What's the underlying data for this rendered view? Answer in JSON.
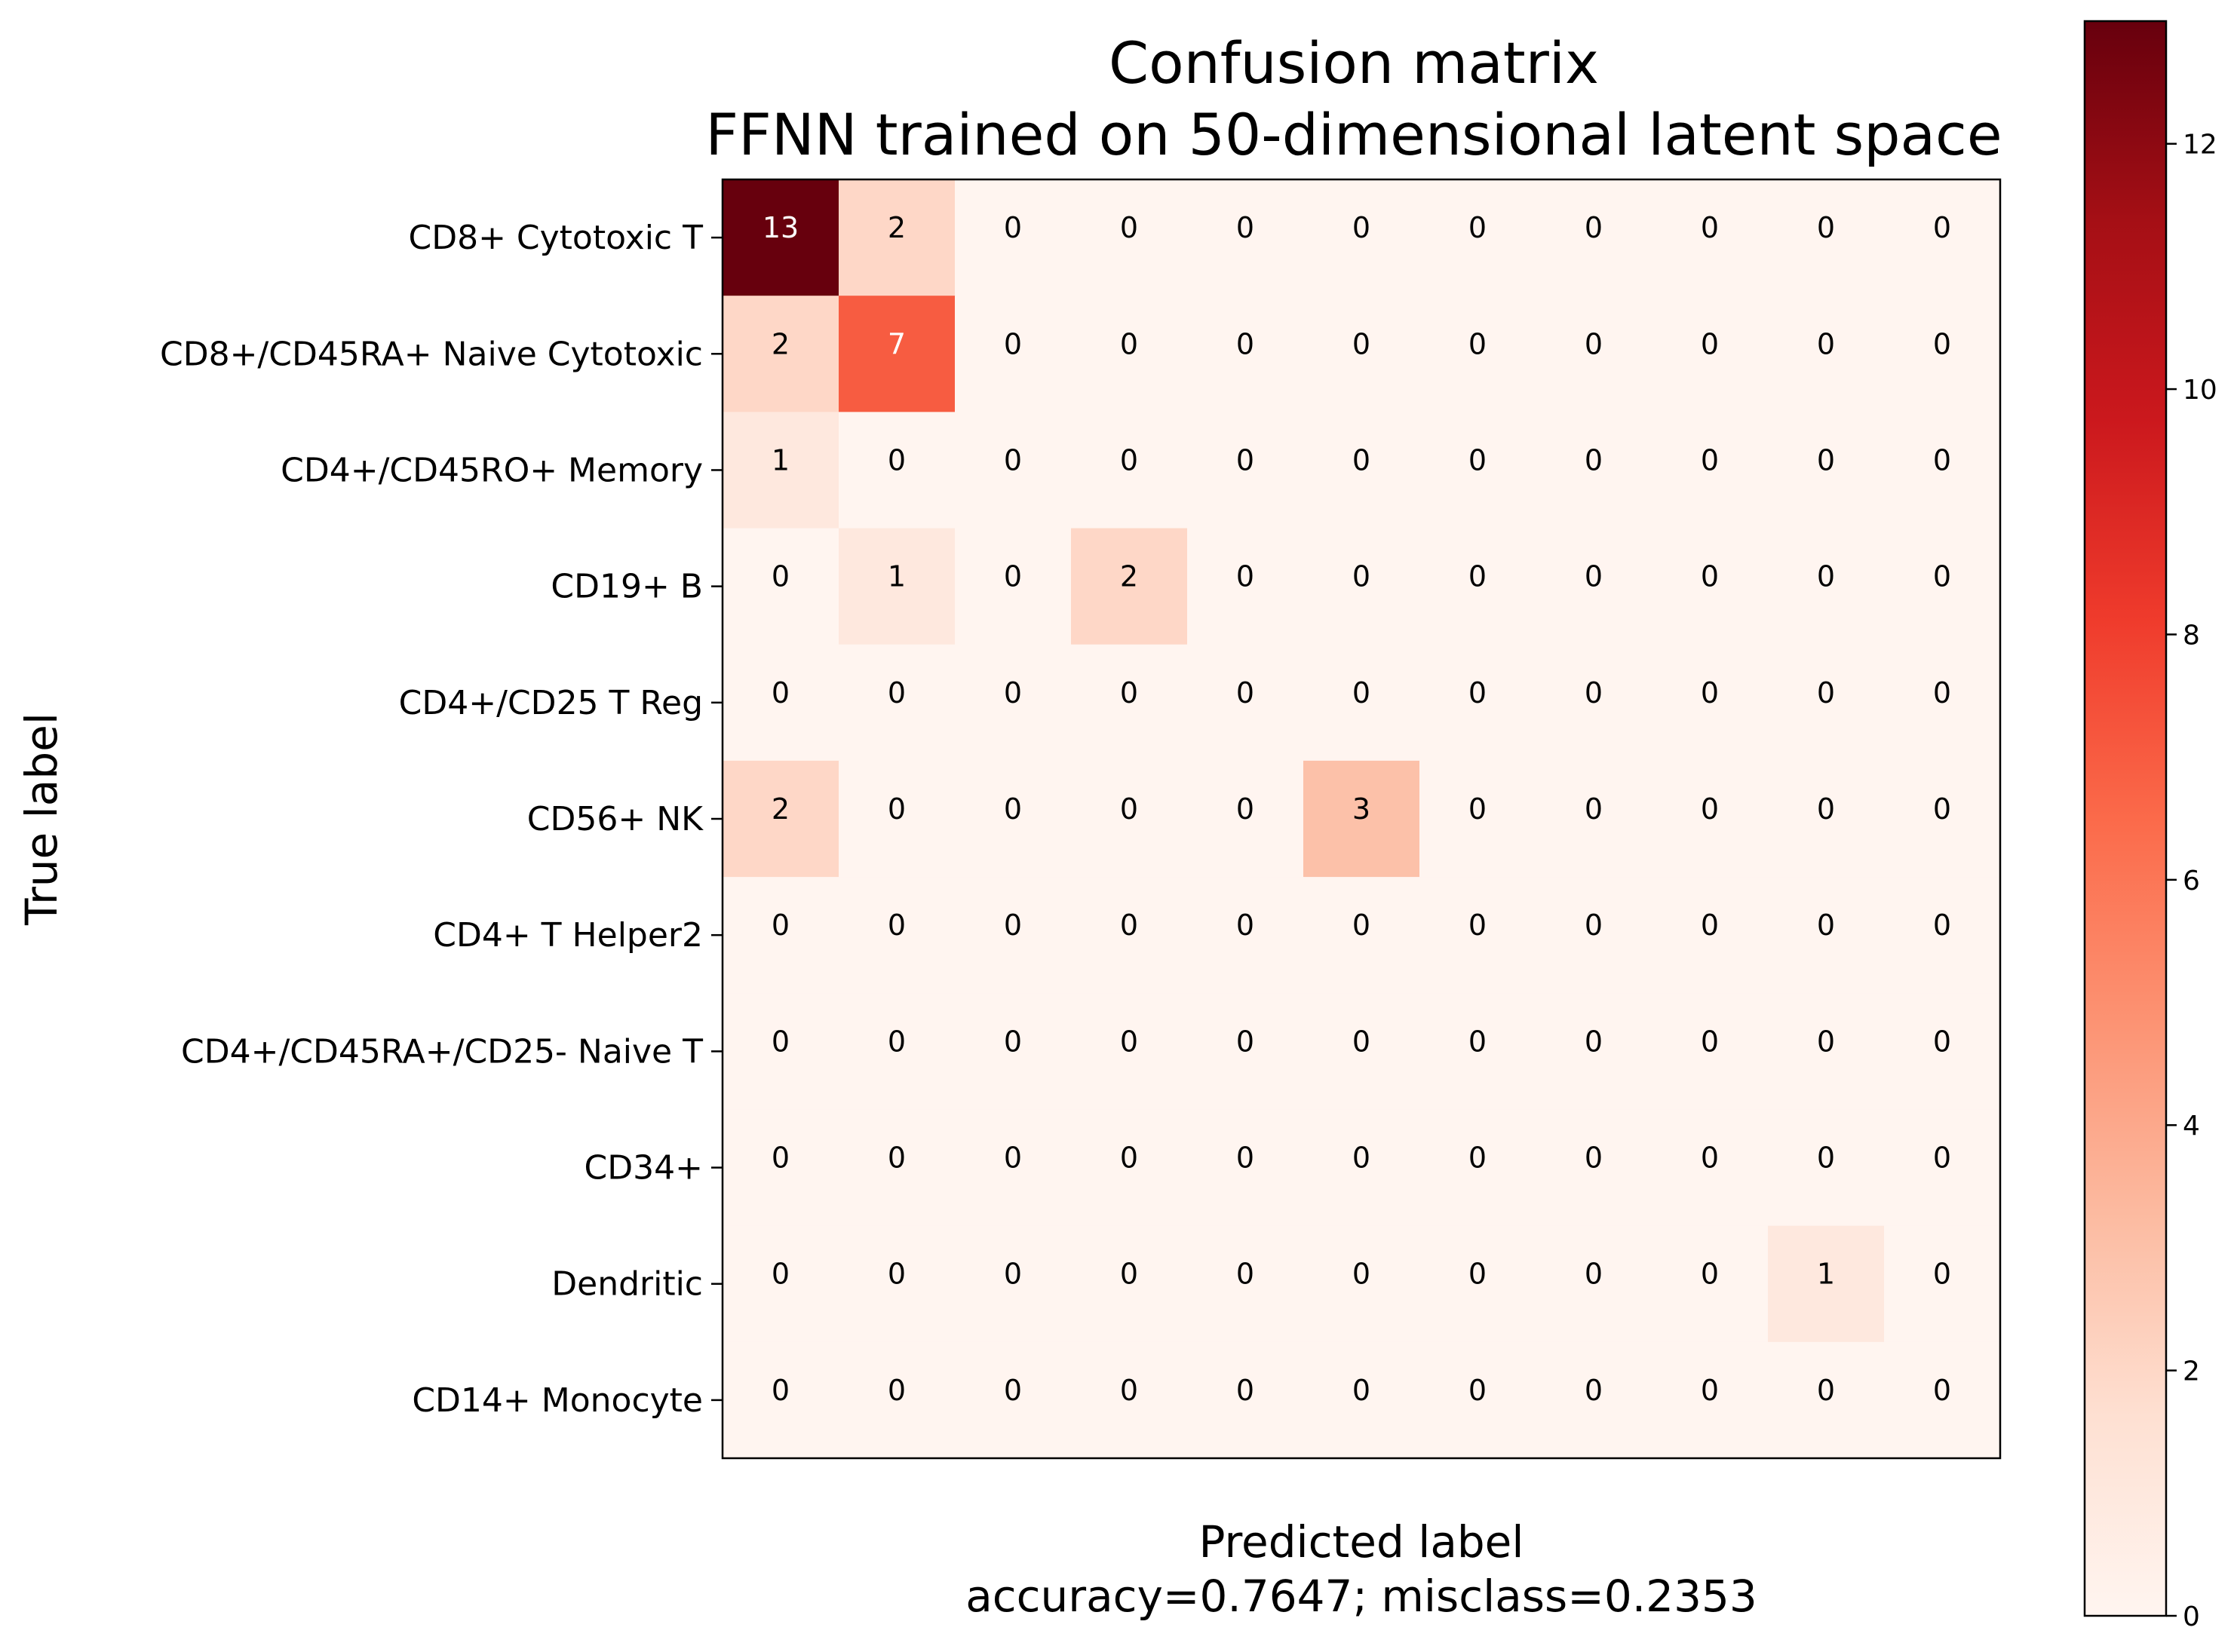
{
  "chart_data": {
    "type": "heatmap",
    "title": [
      "Confusion matrix",
      "FFNN trained on 50-dimensional latent space"
    ],
    "xlabel": [
      "Predicted label",
      "accuracy=0.7647; misclass=0.2353"
    ],
    "ylabel": "True label",
    "row_labels": [
      "CD8+ Cytotoxic T",
      "CD8+/CD45RA+ Naive Cytotoxic",
      "CD4+/CD45RO+ Memory",
      "CD19+ B",
      "CD4+/CD25 T Reg",
      "CD56+ NK",
      "CD4+ T Helper2",
      "CD4+/CD45RA+/CD25- Naive T",
      "CD34+",
      "Dendritic",
      "CD14+ Monocyte"
    ],
    "matrix": [
      [
        13,
        2,
        0,
        0,
        0,
        0,
        0,
        0,
        0,
        0,
        0
      ],
      [
        2,
        7,
        0,
        0,
        0,
        0,
        0,
        0,
        0,
        0,
        0
      ],
      [
        1,
        0,
        0,
        0,
        0,
        0,
        0,
        0,
        0,
        0,
        0
      ],
      [
        0,
        1,
        0,
        2,
        0,
        0,
        0,
        0,
        0,
        0,
        0
      ],
      [
        0,
        0,
        0,
        0,
        0,
        0,
        0,
        0,
        0,
        0,
        0
      ],
      [
        2,
        0,
        0,
        0,
        0,
        3,
        0,
        0,
        0,
        0,
        0
      ],
      [
        0,
        0,
        0,
        0,
        0,
        0,
        0,
        0,
        0,
        0,
        0
      ],
      [
        0,
        0,
        0,
        0,
        0,
        0,
        0,
        0,
        0,
        0,
        0
      ],
      [
        0,
        0,
        0,
        0,
        0,
        0,
        0,
        0,
        0,
        0,
        0
      ],
      [
        0,
        0,
        0,
        0,
        0,
        0,
        0,
        0,
        0,
        1,
        0
      ],
      [
        0,
        0,
        0,
        0,
        0,
        0,
        0,
        0,
        0,
        0,
        0
      ]
    ],
    "colorbar": {
      "min": 0,
      "max": 13,
      "ticks": [
        0,
        2,
        4,
        6,
        8,
        10,
        12
      ]
    },
    "colormap": "Reds",
    "colors": {
      "low": "#fff5f0",
      "high": "#67000d"
    }
  }
}
